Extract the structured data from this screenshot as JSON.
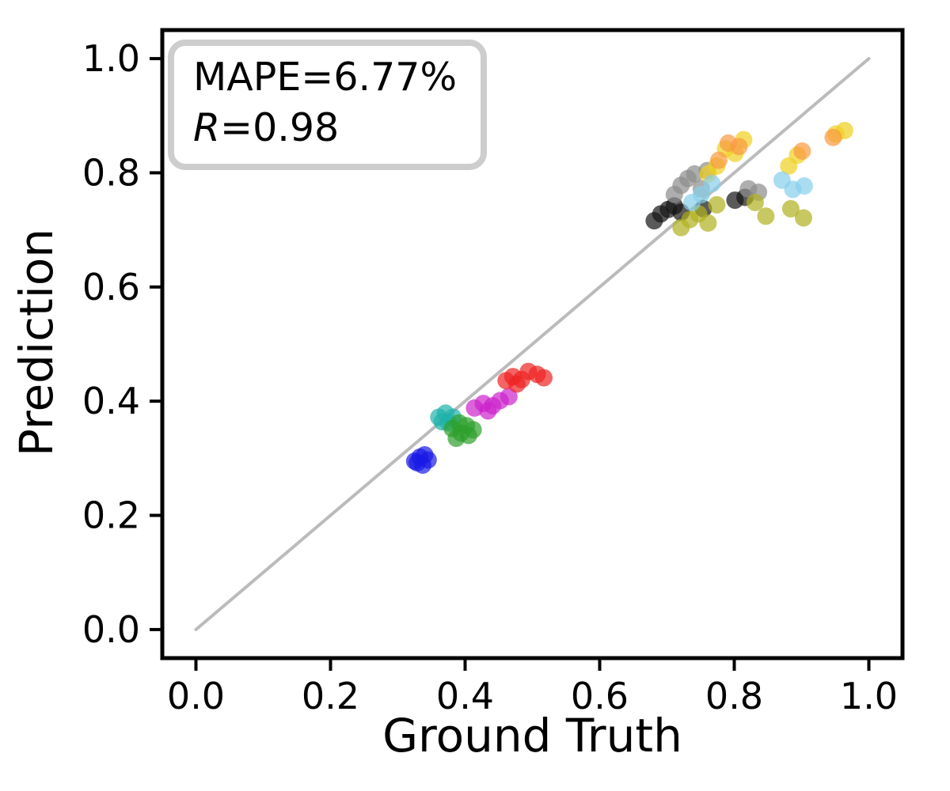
{
  "chart_data": {
    "type": "scatter",
    "title": "",
    "xlabel": "Ground Truth",
    "ylabel": "Prediction",
    "xlim": [
      -0.05,
      1.05
    ],
    "ylim": [
      -0.05,
      1.05
    ],
    "xticks": [
      0.0,
      0.2,
      0.4,
      0.6,
      0.8,
      1.0
    ],
    "yticks": [
      0.0,
      0.2,
      0.4,
      0.6,
      0.8,
      1.0
    ],
    "xtick_labels": [
      "0.0",
      "0.2",
      "0.4",
      "0.6",
      "0.8",
      "1.0"
    ],
    "ytick_labels": [
      "0.0",
      "0.2",
      "0.4",
      "0.6",
      "0.8",
      "1.0"
    ],
    "grid": false,
    "legend": "none",
    "annotation": {
      "mape": "MAPE=6.77%",
      "r_symbol": "R",
      "r_value": "=0.98"
    },
    "stats": {
      "mape_percent": 6.77,
      "r": 0.98
    },
    "identity_line": {
      "from": [
        0.0,
        0.0
      ],
      "to": [
        1.0,
        1.0
      ],
      "color": "#bbbbbb"
    },
    "marker": {
      "radius": 11,
      "alpha": 0.7
    },
    "series": [
      {
        "name": "blue",
        "color": "#1a1ae6",
        "points": [
          [
            0.325,
            0.295
          ],
          [
            0.333,
            0.302
          ],
          [
            0.34,
            0.306
          ],
          [
            0.345,
            0.297
          ],
          [
            0.337,
            0.288
          ],
          [
            0.329,
            0.292
          ]
        ]
      },
      {
        "name": "teal",
        "color": "#20b2aa",
        "points": [
          [
            0.361,
            0.372
          ],
          [
            0.371,
            0.379
          ],
          [
            0.382,
            0.372
          ],
          [
            0.375,
            0.362
          ],
          [
            0.366,
            0.364
          ]
        ]
      },
      {
        "name": "green",
        "color": "#2ca02c",
        "points": [
          [
            0.381,
            0.352
          ],
          [
            0.391,
            0.362
          ],
          [
            0.402,
            0.357
          ],
          [
            0.394,
            0.344
          ],
          [
            0.412,
            0.35
          ],
          [
            0.405,
            0.34
          ],
          [
            0.387,
            0.335
          ]
        ]
      },
      {
        "name": "magenta",
        "color": "#cc22cc",
        "points": [
          [
            0.414,
            0.388
          ],
          [
            0.427,
            0.396
          ],
          [
            0.441,
            0.392
          ],
          [
            0.452,
            0.401
          ],
          [
            0.465,
            0.408
          ],
          [
            0.434,
            0.383
          ]
        ]
      },
      {
        "name": "red",
        "color": "#ee2222",
        "points": [
          [
            0.461,
            0.436
          ],
          [
            0.471,
            0.443
          ],
          [
            0.484,
            0.438
          ],
          [
            0.494,
            0.452
          ],
          [
            0.507,
            0.447
          ],
          [
            0.517,
            0.441
          ],
          [
            0.477,
            0.43
          ]
        ]
      },
      {
        "name": "black",
        "color": "#141414",
        "points": [
          [
            0.681,
            0.716
          ],
          [
            0.691,
            0.728
          ],
          [
            0.702,
            0.736
          ],
          [
            0.711,
            0.742
          ],
          [
            0.721,
            0.731
          ],
          [
            0.754,
            0.737
          ],
          [
            0.801,
            0.752
          ],
          [
            0.816,
            0.757
          ]
        ]
      },
      {
        "name": "gray",
        "color": "#8c8c8c",
        "points": [
          [
            0.711,
            0.762
          ],
          [
            0.721,
            0.778
          ],
          [
            0.731,
            0.79
          ],
          [
            0.741,
            0.798
          ],
          [
            0.751,
            0.772
          ],
          [
            0.76,
            0.804
          ],
          [
            0.821,
            0.772
          ],
          [
            0.836,
            0.766
          ]
        ]
      },
      {
        "name": "olive",
        "color": "#b1b11f",
        "points": [
          [
            0.721,
            0.704
          ],
          [
            0.734,
            0.718
          ],
          [
            0.747,
            0.728
          ],
          [
            0.761,
            0.712
          ],
          [
            0.774,
            0.744
          ],
          [
            0.831,
            0.748
          ],
          [
            0.847,
            0.724
          ],
          [
            0.884,
            0.737
          ],
          [
            0.903,
            0.721
          ]
        ]
      },
      {
        "name": "yellow",
        "color": "#f0d020",
        "points": [
          [
            0.761,
            0.798
          ],
          [
            0.774,
            0.812
          ],
          [
            0.787,
            0.842
          ],
          [
            0.801,
            0.834
          ],
          [
            0.814,
            0.858
          ],
          [
            0.881,
            0.812
          ],
          [
            0.894,
            0.831
          ],
          [
            0.951,
            0.868
          ],
          [
            0.964,
            0.874
          ]
        ]
      },
      {
        "name": "orange",
        "color": "#f89a40",
        "points": [
          [
            0.777,
            0.822
          ],
          [
            0.791,
            0.852
          ],
          [
            0.807,
            0.846
          ],
          [
            0.901,
            0.838
          ],
          [
            0.947,
            0.862
          ]
        ]
      },
      {
        "name": "skyblue",
        "color": "#87ceeb",
        "points": [
          [
            0.737,
            0.748
          ],
          [
            0.751,
            0.762
          ],
          [
            0.767,
            0.781
          ],
          [
            0.871,
            0.787
          ],
          [
            0.887,
            0.771
          ],
          [
            0.904,
            0.777
          ]
        ]
      }
    ]
  }
}
